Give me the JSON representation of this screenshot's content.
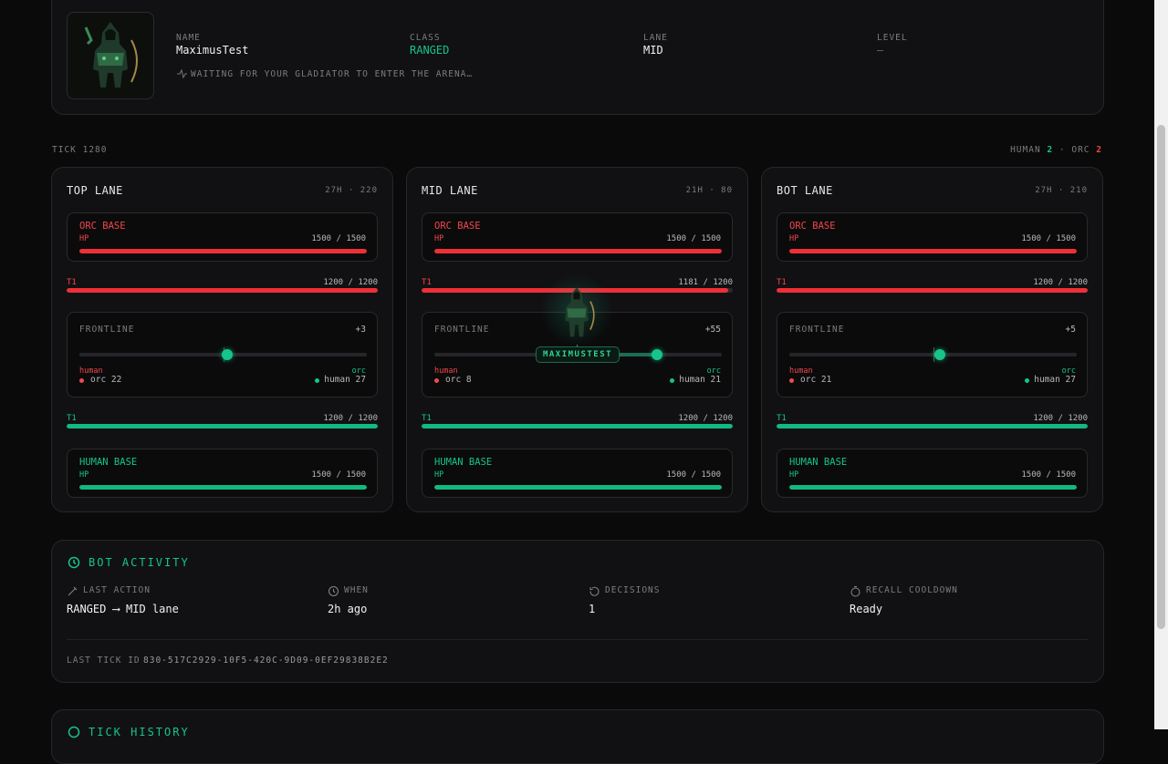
{
  "profile": {
    "name_label": "NAME",
    "name": "MaximusTest",
    "class_label": "CLASS",
    "class": "RANGED",
    "lane_label": "LANE",
    "lane": "MID",
    "level_label": "LEVEL",
    "level": "—",
    "status": "WAITING FOR YOUR GLADIATOR TO ENTER THE ARENA…"
  },
  "tick": {
    "label": "TICK 1280",
    "human_label": "HUMAN",
    "human_count": "2",
    "separator": "·",
    "orc_label": "ORC",
    "orc_count": "2"
  },
  "lanes": [
    {
      "name": "TOP LANE",
      "meta": "27H · 220",
      "orc_base": {
        "label": "ORC BASE",
        "hp_label": "HP",
        "hp": {
          "value": 1500,
          "max": 1500,
          "label": "1500 / 1500"
        }
      },
      "orc_t1": {
        "label": "T1",
        "hp": {
          "value": 1200,
          "max": 1200,
          "label": "1200 / 1200"
        }
      },
      "frontline": {
        "label": "FRONTLINE",
        "position": {
          "value": 3,
          "label": "+3"
        },
        "lim": [
          -100,
          100
        ],
        "left_team": "human",
        "left": "orc 22",
        "right_team": "orc",
        "right": "human 27"
      },
      "human_t1": {
        "label": "T1",
        "hp": {
          "value": 1200,
          "max": 1200,
          "label": "1200 / 1200"
        }
      },
      "human_base": {
        "label": "HUMAN BASE",
        "hp_label": "HP",
        "hp": {
          "value": 1500,
          "max": 1500,
          "label": "1500 / 1500"
        }
      }
    },
    {
      "name": "MID LANE",
      "meta": "21H · 80",
      "orc_base": {
        "label": "ORC BASE",
        "hp_label": "HP",
        "hp": {
          "value": 1500,
          "max": 1500,
          "label": "1500 / 1500"
        }
      },
      "orc_t1": {
        "label": "T1",
        "hp": {
          "value": 1181,
          "max": 1200,
          "label": "1181 / 1200"
        }
      },
      "frontline": {
        "label": "FRONTLINE",
        "position": {
          "value": 55,
          "label": "+55"
        },
        "lim": [
          -100,
          100
        ],
        "left_team": "human",
        "left": "orc 8",
        "right_team": "orc",
        "right": "human 21"
      },
      "human_t1": {
        "label": "T1",
        "hp": {
          "value": 1200,
          "max": 1200,
          "label": "1200 / 1200"
        }
      },
      "human_base": {
        "label": "HUMAN BASE",
        "hp_label": "HP",
        "hp": {
          "value": 1500,
          "max": 1500,
          "label": "1500 / 1500"
        }
      }
    },
    {
      "name": "BOT LANE",
      "meta": "27H · 210",
      "orc_base": {
        "label": "ORC BASE",
        "hp_label": "HP",
        "hp": {
          "value": 1500,
          "max": 1500,
          "label": "1500 / 1500"
        }
      },
      "orc_t1": {
        "label": "T1",
        "hp": {
          "value": 1200,
          "max": 1200,
          "label": "1200 / 1200"
        }
      },
      "frontline": {
        "label": "FRONTLINE",
        "position": {
          "value": 5,
          "label": "+5"
        },
        "lim": [
          -100,
          100
        ],
        "left_team": "human",
        "left": "orc 21",
        "right_team": "orc",
        "right": "human 27"
      },
      "human_t1": {
        "label": "T1",
        "hp": {
          "value": 1200,
          "max": 1200,
          "label": "1200 / 1200"
        }
      },
      "human_base": {
        "label": "HUMAN BASE",
        "hp_label": "HP",
        "hp": {
          "value": 1500,
          "max": 1500,
          "label": "1500 / 1500"
        }
      }
    }
  ],
  "avatar_tag": "MAXIMUSTEST",
  "activity": {
    "title": "BOT ACTIVITY",
    "items": [
      {
        "label": "LAST ACTION",
        "value": "RANGED ⟶ MID lane"
      },
      {
        "label": "WHEN",
        "value": "2h ago"
      },
      {
        "label": "DECISIONS",
        "value": "1"
      },
      {
        "label": "RECALL COOLDOWN",
        "value": "Ready"
      }
    ],
    "tick_id_label": "LAST TICK ID",
    "tick_id": "830-517C2929-10F5-420C-9D09-0EF29838B2E2"
  },
  "history": {
    "title": "TICK HISTORY"
  }
}
